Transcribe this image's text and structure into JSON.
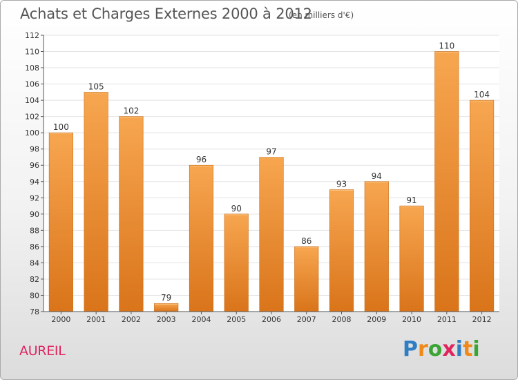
{
  "title": "Achats et Charges Externes 2000 à 2012",
  "subtitle": "(en milliers d'€)",
  "commune": "AUREIL",
  "brand": {
    "letters": [
      "P",
      "r",
      "o",
      "x",
      "i",
      "t",
      "i"
    ],
    "colors": [
      "#2f7ec4",
      "#ef8a1a",
      "#3aa535",
      "#e0245e",
      "#2f7ec4",
      "#ef8a1a",
      "#3aa535"
    ]
  },
  "colors": {
    "bar_light": "#f7a650",
    "bar_dark": "#d9741a",
    "bar_stroke": "#c86a14",
    "axis": "#555555",
    "grid": "#e3e3e3",
    "title": "#555555",
    "commune": "#e0245e"
  },
  "chart_data": {
    "type": "bar",
    "categories": [
      "2000",
      "2001",
      "2002",
      "2003",
      "2004",
      "2005",
      "2006",
      "2007",
      "2008",
      "2009",
      "2010",
      "2011",
      "2012"
    ],
    "values": [
      100,
      105,
      102,
      79,
      96,
      90,
      97,
      86,
      93,
      94,
      91,
      110,
      104
    ],
    "title": "Achats et Charges Externes 2000 à 2012",
    "ylim": [
      78,
      112
    ],
    "yticks": [
      78,
      80,
      82,
      84,
      86,
      88,
      90,
      92,
      94,
      96,
      98,
      100,
      102,
      104,
      106,
      108,
      110,
      112
    ],
    "grid": true,
    "data_labels": true
  }
}
